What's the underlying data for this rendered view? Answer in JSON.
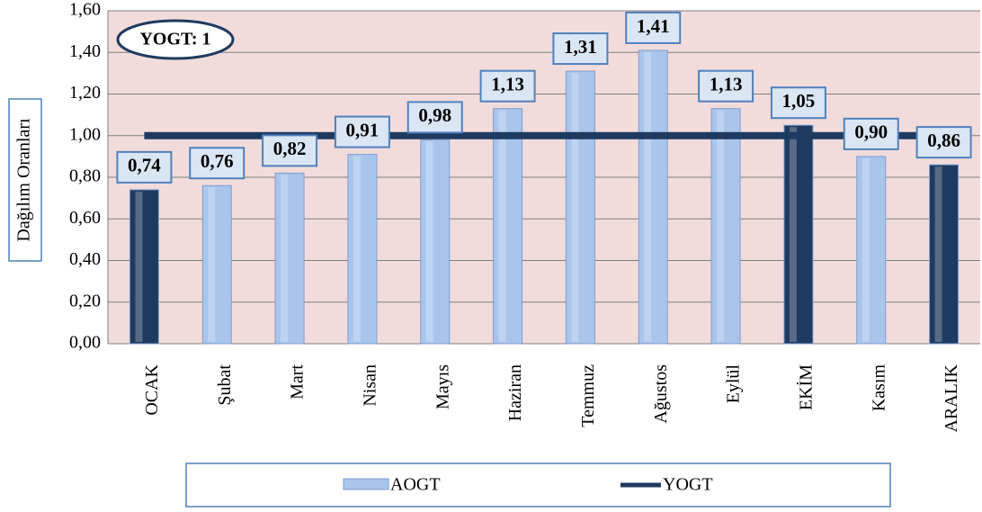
{
  "chart_data": {
    "type": "bar",
    "y_label": "Dağılım Oranları",
    "annotation": "YOGT: 1",
    "categories": [
      "OCAK",
      "Şubat",
      "Mart",
      "Nisan",
      "Mayıs",
      "Haziran",
      "Temmuz",
      "Ağustos",
      "Eylül",
      "EKİM",
      "Kasım",
      "ARALIK"
    ],
    "series": [
      {
        "name": "AOGT",
        "type": "bar",
        "color": "#a9c5ec",
        "colors": [
          "#1f3a60",
          "#a9c5ec",
          "#a9c5ec",
          "#a9c5ec",
          "#a9c5ec",
          "#a9c5ec",
          "#a9c5ec",
          "#a9c5ec",
          "#a9c5ec",
          "#1f3a60",
          "#a9c5ec",
          "#1f3a60"
        ],
        "values": [
          0.74,
          0.76,
          0.82,
          0.91,
          0.98,
          1.13,
          1.31,
          1.41,
          1.13,
          1.05,
          0.9,
          0.86
        ],
        "value_labels": [
          "0,74",
          "0,76",
          "0,82",
          "0,91",
          "0,98",
          "1,13",
          "1,31",
          "1,41",
          "1,13",
          "1,05",
          "0,90",
          "0,86"
        ]
      },
      {
        "name": "YOGT",
        "type": "line",
        "color": "#1f3a60",
        "values": [
          1,
          1,
          1,
          1,
          1,
          1,
          1,
          1,
          1,
          1,
          1,
          1
        ]
      }
    ],
    "ylim": [
      0,
      1.6
    ],
    "yticks": [
      {
        "value": 0,
        "label": "0,00"
      },
      {
        "value": 0.2,
        "label": "0,20"
      },
      {
        "value": 0.4,
        "label": "0,40"
      },
      {
        "value": 0.6,
        "label": "0,60"
      },
      {
        "value": 0.8,
        "label": "0,80"
      },
      {
        "value": 1,
        "label": "1,00"
      },
      {
        "value": 1.2,
        "label": "1,20"
      },
      {
        "value": 1.4,
        "label": "1,40"
      },
      {
        "value": 1.6,
        "label": "1,60"
      }
    ],
    "grid": true,
    "legend": "bottom"
  }
}
